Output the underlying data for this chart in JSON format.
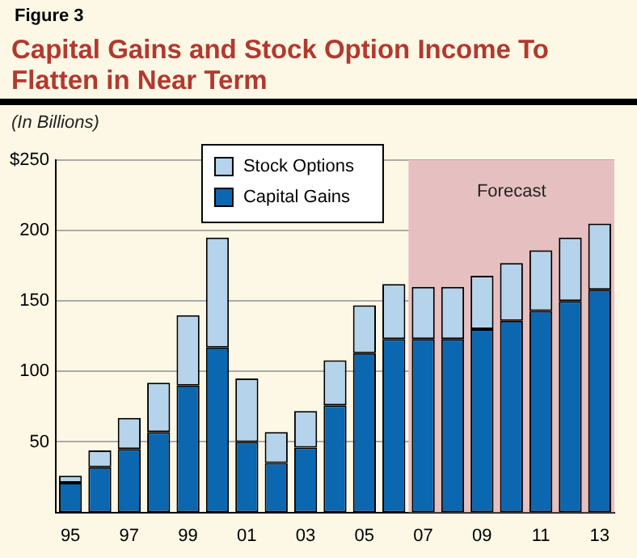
{
  "chart_data": {
    "type": "bar",
    "title": "Capital Gains and Stock Option Income To Flatten in Near Term",
    "ylabel": "(In Billions)",
    "annotations": [
      "Figure 3"
    ],
    "categories": [
      "95",
      null,
      "97",
      null,
      "99",
      null,
      "01",
      null,
      "03",
      null,
      "05",
      null,
      "07",
      null,
      "09",
      null,
      "11",
      null,
      "13"
    ],
    "series": [
      {
        "name": "Capital Gains",
        "color": "#0a67b0",
        "values": [
          21,
          32,
          45,
          57,
          90,
          117,
          50,
          35,
          46,
          76,
          113,
          123,
          123,
          123,
          130,
          136,
          143,
          150,
          158
        ]
      },
      {
        "name": "Stock Options",
        "color": "#b5d3ea",
        "values": [
          5,
          12,
          22,
          35,
          50,
          78,
          45,
          22,
          26,
          32,
          34,
          39,
          37,
          37,
          38,
          41,
          43,
          45,
          47
        ]
      }
    ],
    "stacked": true,
    "ylim": [
      0,
      250
    ],
    "yticks": [
      {
        "value": 50,
        "label": "50"
      },
      {
        "value": 100,
        "label": "100"
      },
      {
        "value": 150,
        "label": "150"
      },
      {
        "value": 200,
        "label": "200"
      },
      {
        "value": 250,
        "label": "$250"
      }
    ],
    "grid": "y",
    "legend": "top left",
    "bands": [
      {
        "axis": "x",
        "from": "07",
        "to": "13",
        "label": "Forecast",
        "color": "#e6c0c0"
      }
    ]
  }
}
